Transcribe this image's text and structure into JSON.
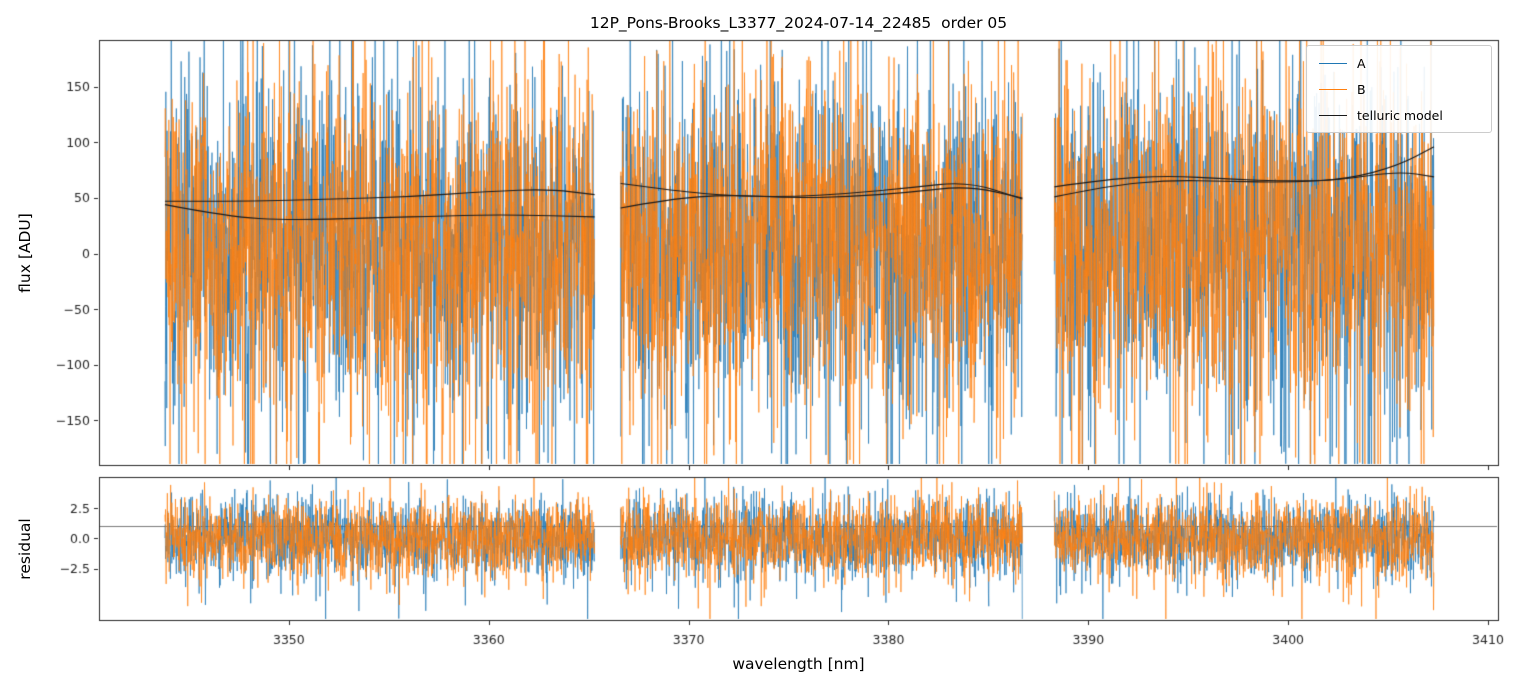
{
  "title": "12P_Pons-Brooks_L3377_2024-07-14_22485  order 05",
  "xlabel": "wavelength [nm]",
  "legend": {
    "items": [
      {
        "label": "A",
        "color": "#1f77b4"
      },
      {
        "label": "B",
        "color": "#ff7f0e"
      },
      {
        "label": "telluric model",
        "color": "#1a1a1a"
      }
    ]
  },
  "chart_data": {
    "type": "line",
    "title": "12P_Pons-Brooks_L3377_2024-07-14_22485  order 05",
    "xlabel": "wavelength [nm]",
    "xlim": [
      3340.5,
      3410.5
    ],
    "xticks": [
      3350,
      3360,
      3370,
      3380,
      3390,
      3400,
      3410
    ],
    "xticklabels": [
      "3350",
      "3360",
      "3370",
      "3380",
      "3390",
      "3400",
      "3410"
    ],
    "grid": false,
    "legend_position": "upper right",
    "panels": [
      {
        "name": "flux",
        "ylabel": "flux [ADU]",
        "ylim": [
          -190,
          192
        ],
        "yticks": [
          -150,
          -100,
          -50,
          0,
          50,
          100,
          150
        ],
        "yticklabels": [
          "−150",
          "−100",
          "−50",
          "0",
          "50",
          "100",
          "150"
        ]
      },
      {
        "name": "residual",
        "ylabel": "residual",
        "ylim": [
          -6.7,
          5.05
        ],
        "yticks": [
          -2.5,
          0,
          2.5
        ],
        "yticklabels": [
          "−2.5",
          "0.0",
          "2.5"
        ],
        "reference_line": 1.0
      }
    ],
    "segments": [
      {
        "wavelength_range": [
          3343.8,
          3365.3
        ]
      },
      {
        "wavelength_range": [
          3366.6,
          3386.7
        ]
      },
      {
        "wavelength_range": [
          3388.3,
          3407.3
        ]
      }
    ],
    "series": [
      {
        "name": "A",
        "color": "#1f77b4",
        "flux_noise_mean": 8,
        "flux_noise_std": 74,
        "residual_noise_std": 1.6
      },
      {
        "name": "B",
        "color": "#ff7f0e",
        "flux_noise_mean": 8,
        "flux_noise_std": 74,
        "residual_noise_std": 1.6
      }
    ],
    "telluric_model": {
      "color": "#1a1a1a",
      "curves": [
        {
          "segment": 0,
          "points": [
            [
              3343.8,
              47
            ],
            [
              3348,
              47
            ],
            [
              3352,
              49
            ],
            [
              3356,
              51
            ],
            [
              3360,
              56
            ],
            [
              3363,
              58
            ],
            [
              3365.3,
              53
            ]
          ]
        },
        {
          "segment": 0,
          "points": [
            [
              3343.8,
              44
            ],
            [
              3347,
              33
            ],
            [
              3350,
              30
            ],
            [
              3354,
              32
            ],
            [
              3358,
              34
            ],
            [
              3361,
              35
            ],
            [
              3365.3,
              33
            ]
          ]
        },
        {
          "segment": 1,
          "points": [
            [
              3366.6,
              63
            ],
            [
              3369.5,
              56
            ],
            [
              3372,
              52
            ],
            [
              3375,
              51
            ],
            [
              3378,
              54
            ],
            [
              3381,
              59
            ],
            [
              3384,
              65
            ],
            [
              3386.7,
              49
            ]
          ]
        },
        {
          "segment": 1,
          "points": [
            [
              3366.6,
              41
            ],
            [
              3369,
              49
            ],
            [
              3372,
              53
            ],
            [
              3375,
              50
            ],
            [
              3378,
              51
            ],
            [
              3381,
              55
            ],
            [
              3384,
              61
            ],
            [
              3386.7,
              50
            ]
          ]
        },
        {
          "segment": 2,
          "points": [
            [
              3388.3,
              51
            ],
            [
              3391,
              61
            ],
            [
              3394,
              66
            ],
            [
              3397,
              65
            ],
            [
              3400,
              64
            ],
            [
              3403,
              67
            ],
            [
              3405.5,
              79
            ],
            [
              3407.3,
              96
            ]
          ]
        },
        {
          "segment": 2,
          "points": [
            [
              3388.3,
              60
            ],
            [
              3391,
              67
            ],
            [
              3394,
              70
            ],
            [
              3397,
              67
            ],
            [
              3400,
              65
            ],
            [
              3402.5,
              66
            ],
            [
              3405.5,
              74
            ],
            [
              3407.3,
              69
            ]
          ]
        }
      ]
    }
  }
}
